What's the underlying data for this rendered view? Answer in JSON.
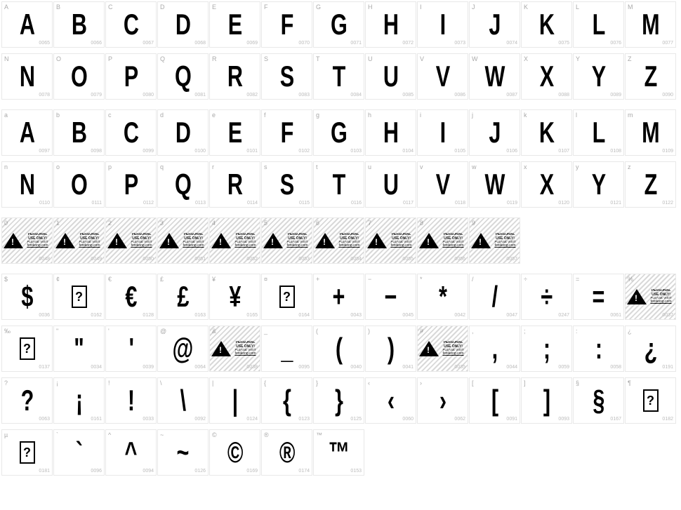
{
  "warn_text": {
    "t1": "PERSONAL USE ONLY!",
    "t2": "PLEASE VISIT",
    "t3": "fontkong.com"
  },
  "row_upper": [
    {
      "l": "A",
      "c": "0065",
      "g": "A"
    },
    {
      "l": "B",
      "c": "0066",
      "g": "B"
    },
    {
      "l": "C",
      "c": "0067",
      "g": "C"
    },
    {
      "l": "D",
      "c": "0068",
      "g": "D"
    },
    {
      "l": "E",
      "c": "0069",
      "g": "E"
    },
    {
      "l": "F",
      "c": "0070",
      "g": "F"
    },
    {
      "l": "G",
      "c": "0071",
      "g": "G"
    },
    {
      "l": "H",
      "c": "0072",
      "g": "H"
    },
    {
      "l": "I",
      "c": "0073",
      "g": "I"
    },
    {
      "l": "J",
      "c": "0074",
      "g": "J"
    },
    {
      "l": "K",
      "c": "0075",
      "g": "K"
    },
    {
      "l": "L",
      "c": "0076",
      "g": "L"
    },
    {
      "l": "M",
      "c": "0077",
      "g": "M"
    }
  ],
  "row_upper2": [
    {
      "l": "N",
      "c": "0078",
      "g": "N"
    },
    {
      "l": "O",
      "c": "0079",
      "g": "O"
    },
    {
      "l": "P",
      "c": "0080",
      "g": "P"
    },
    {
      "l": "Q",
      "c": "0081",
      "g": "Q"
    },
    {
      "l": "R",
      "c": "0082",
      "g": "R"
    },
    {
      "l": "S",
      "c": "0083",
      "g": "S"
    },
    {
      "l": "T",
      "c": "0084",
      "g": "T"
    },
    {
      "l": "U",
      "c": "0085",
      "g": "U"
    },
    {
      "l": "V",
      "c": "0086",
      "g": "V"
    },
    {
      "l": "W",
      "c": "0087",
      "g": "W"
    },
    {
      "l": "X",
      "c": "0088",
      "g": "X"
    },
    {
      "l": "Y",
      "c": "0089",
      "g": "Y"
    },
    {
      "l": "Z",
      "c": "0090",
      "g": "Z"
    }
  ],
  "row_lower": [
    {
      "l": "a",
      "c": "0097",
      "g": "A"
    },
    {
      "l": "b",
      "c": "0098",
      "g": "B"
    },
    {
      "l": "c",
      "c": "0099",
      "g": "C"
    },
    {
      "l": "d",
      "c": "0100",
      "g": "D"
    },
    {
      "l": "e",
      "c": "0101",
      "g": "E"
    },
    {
      "l": "f",
      "c": "0102",
      "g": "F"
    },
    {
      "l": "g",
      "c": "0103",
      "g": "G"
    },
    {
      "l": "h",
      "c": "0104",
      "g": "H"
    },
    {
      "l": "i",
      "c": "0105",
      "g": "I"
    },
    {
      "l": "j",
      "c": "0106",
      "g": "J"
    },
    {
      "l": "k",
      "c": "0107",
      "g": "K"
    },
    {
      "l": "l",
      "c": "0108",
      "g": "L"
    },
    {
      "l": "m",
      "c": "0109",
      "g": "M"
    }
  ],
  "row_lower2": [
    {
      "l": "n",
      "c": "0110",
      "g": "N"
    },
    {
      "l": "o",
      "c": "0111",
      "g": "O"
    },
    {
      "l": "p",
      "c": "0112",
      "g": "P"
    },
    {
      "l": "q",
      "c": "0113",
      "g": "Q"
    },
    {
      "l": "r",
      "c": "0114",
      "g": "R"
    },
    {
      "l": "s",
      "c": "0115",
      "g": "S"
    },
    {
      "l": "t",
      "c": "0116",
      "g": "T"
    },
    {
      "l": "u",
      "c": "0117",
      "g": "U"
    },
    {
      "l": "v",
      "c": "0118",
      "g": "V"
    },
    {
      "l": "w",
      "c": "0119",
      "g": "W"
    },
    {
      "l": "x",
      "c": "0120",
      "g": "X"
    },
    {
      "l": "y",
      "c": "0121",
      "g": "Y"
    },
    {
      "l": "z",
      "c": "0122",
      "g": "Z"
    }
  ],
  "row_digits": [
    {
      "l": "0",
      "c": "0048",
      "warn": true
    },
    {
      "l": "1",
      "c": "0049",
      "warn": true
    },
    {
      "l": "2",
      "c": "0050",
      "warn": true
    },
    {
      "l": "3",
      "c": "0051",
      "warn": true
    },
    {
      "l": "4",
      "c": "0052",
      "warn": true
    },
    {
      "l": "5",
      "c": "0053",
      "warn": true
    },
    {
      "l": "6",
      "c": "0054",
      "warn": true
    },
    {
      "l": "7",
      "c": "0055",
      "warn": true
    },
    {
      "l": "8",
      "c": "0056",
      "warn": true
    },
    {
      "l": "9",
      "c": "0057",
      "warn": true
    },
    {
      "blank": true
    },
    {
      "blank": true
    },
    {
      "blank": true
    }
  ],
  "row_sym1": [
    {
      "l": "$",
      "c": "0036",
      "g": "$"
    },
    {
      "l": "¢",
      "c": "0162",
      "missing": true
    },
    {
      "l": "€",
      "c": "0128",
      "g": "€"
    },
    {
      "l": "£",
      "c": "0163",
      "g": "£"
    },
    {
      "l": "¥",
      "c": "0165",
      "g": "¥"
    },
    {
      "l": "¤",
      "c": "0164",
      "missing": true
    },
    {
      "l": "+",
      "c": "0043",
      "g": "+"
    },
    {
      "l": "−",
      "c": "0045",
      "g": "−"
    },
    {
      "l": "*",
      "c": "0042",
      "g": "*"
    },
    {
      "l": "/",
      "c": "0047",
      "g": "/"
    },
    {
      "l": "÷",
      "c": "0247",
      "g": "÷"
    },
    {
      "l": "=",
      "c": "0061",
      "g": "="
    },
    {
      "l": "%",
      "c": "0037",
      "warn": true
    }
  ],
  "row_sym2": [
    {
      "l": "‰",
      "c": "0137",
      "missing": true
    },
    {
      "l": "\"",
      "c": "0034",
      "g": "\""
    },
    {
      "l": "'",
      "c": "0039",
      "g": "'"
    },
    {
      "l": "@",
      "c": "0064",
      "g": "@"
    },
    {
      "l": "&",
      "c": "0038",
      "warn": true
    },
    {
      "l": "_",
      "c": "0095",
      "g": "_"
    },
    {
      "l": "(",
      "c": "0040",
      "g": "("
    },
    {
      "l": ")",
      "c": "0041",
      "g": ")"
    },
    {
      "l": "#",
      "c": "0035",
      "warn": true
    },
    {
      "l": ",",
      "c": "0044",
      "g": ","
    },
    {
      "l": ";",
      "c": "0059",
      "g": ";"
    },
    {
      "l": ":",
      "c": "0058",
      "g": ":"
    },
    {
      "l": "¿",
      "c": "0191",
      "g": "¿"
    }
  ],
  "row_sym3": [
    {
      "l": "?",
      "c": "0063",
      "g": "?"
    },
    {
      "l": "¡",
      "c": "0161",
      "g": "¡"
    },
    {
      "l": "!",
      "c": "0033",
      "g": "!"
    },
    {
      "l": "\\",
      "c": "0092",
      "g": "\\"
    },
    {
      "l": "|",
      "c": "0124",
      "g": "|"
    },
    {
      "l": "{",
      "c": "0123",
      "g": "{"
    },
    {
      "l": "}",
      "c": "0125",
      "g": "}"
    },
    {
      "l": "‹",
      "c": "0060",
      "g": "‹"
    },
    {
      "l": "›",
      "c": "0062",
      "g": "›"
    },
    {
      "l": "[",
      "c": "0091",
      "g": "["
    },
    {
      "l": "]",
      "c": "0093",
      "g": "]"
    },
    {
      "l": "§",
      "c": "0167",
      "g": "§"
    },
    {
      "l": "¶",
      "c": "0182",
      "missing": true
    }
  ],
  "row_sym4": [
    {
      "l": "µ",
      "c": "0181",
      "missing": true
    },
    {
      "l": "`",
      "c": "0096",
      "g": "`"
    },
    {
      "l": "^",
      "c": "0094",
      "g": "^"
    },
    {
      "l": "~",
      "c": "0126",
      "g": "~"
    },
    {
      "l": "©",
      "c": "0169",
      "g": "©"
    },
    {
      "l": "®",
      "c": "0174",
      "g": "®"
    },
    {
      "l": "™",
      "c": "0153",
      "g": "™"
    },
    {
      "blank": true
    },
    {
      "blank": true
    },
    {
      "blank": true
    },
    {
      "blank": true
    },
    {
      "blank": true
    },
    {
      "blank": true
    }
  ]
}
